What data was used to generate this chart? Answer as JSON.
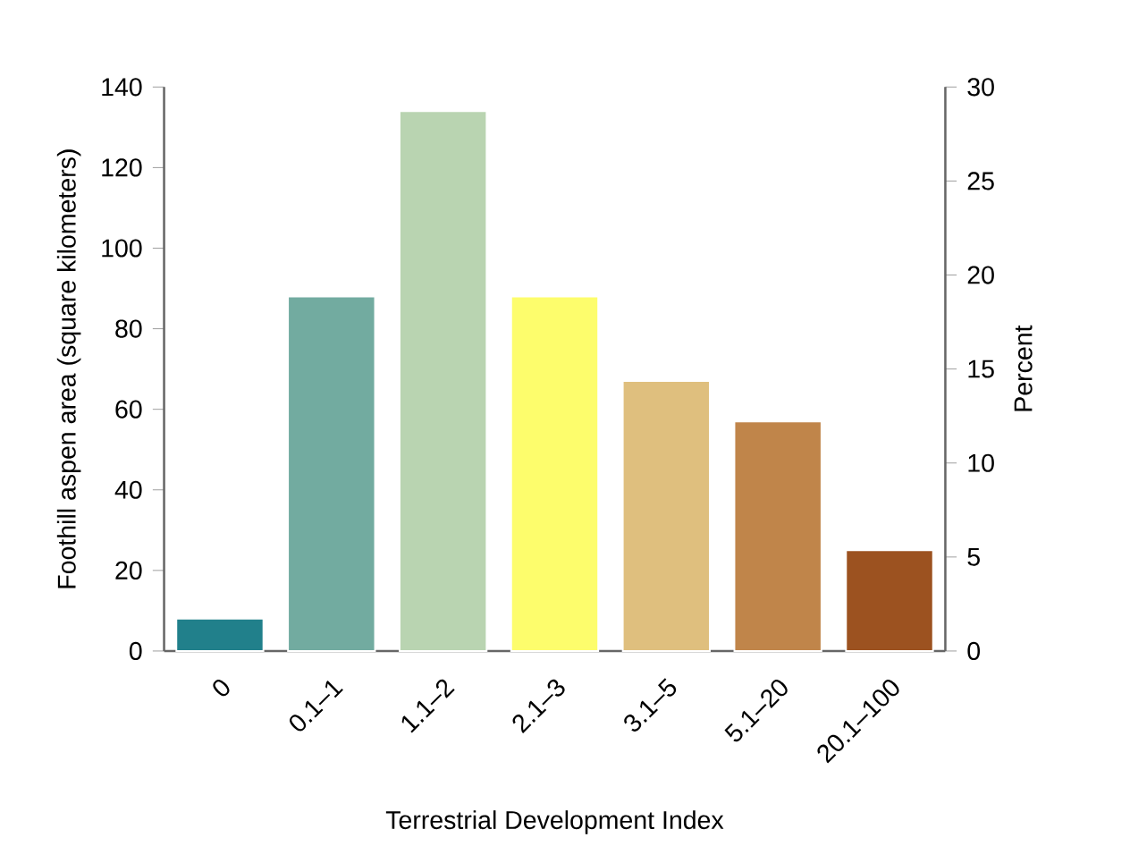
{
  "chart_data": {
    "type": "bar",
    "xlabel": "Terrestrial Development Index",
    "ylabel": "Foothill aspen area (square kilometers)",
    "y2label": "Percent",
    "categories": [
      "0",
      "0.1–1",
      "1.1–2",
      "2.1–3",
      "3.1–5",
      "5.1–20",
      "20.1–100"
    ],
    "values": [
      8,
      88,
      134,
      88,
      67,
      57,
      25
    ],
    "colors": [
      "#21808b",
      "#72aba0",
      "#b9d4b1",
      "#fdfd6c",
      "#dfbf7e",
      "#c0854a",
      "#9c5220"
    ],
    "ylim": [
      0,
      140
    ],
    "yticks": [
      0,
      20,
      40,
      60,
      80,
      100,
      120,
      140
    ],
    "y2lim": [
      0,
      30
    ],
    "y2ticks": [
      0,
      5,
      10,
      15,
      20,
      25,
      30
    ],
    "grid": false
  }
}
